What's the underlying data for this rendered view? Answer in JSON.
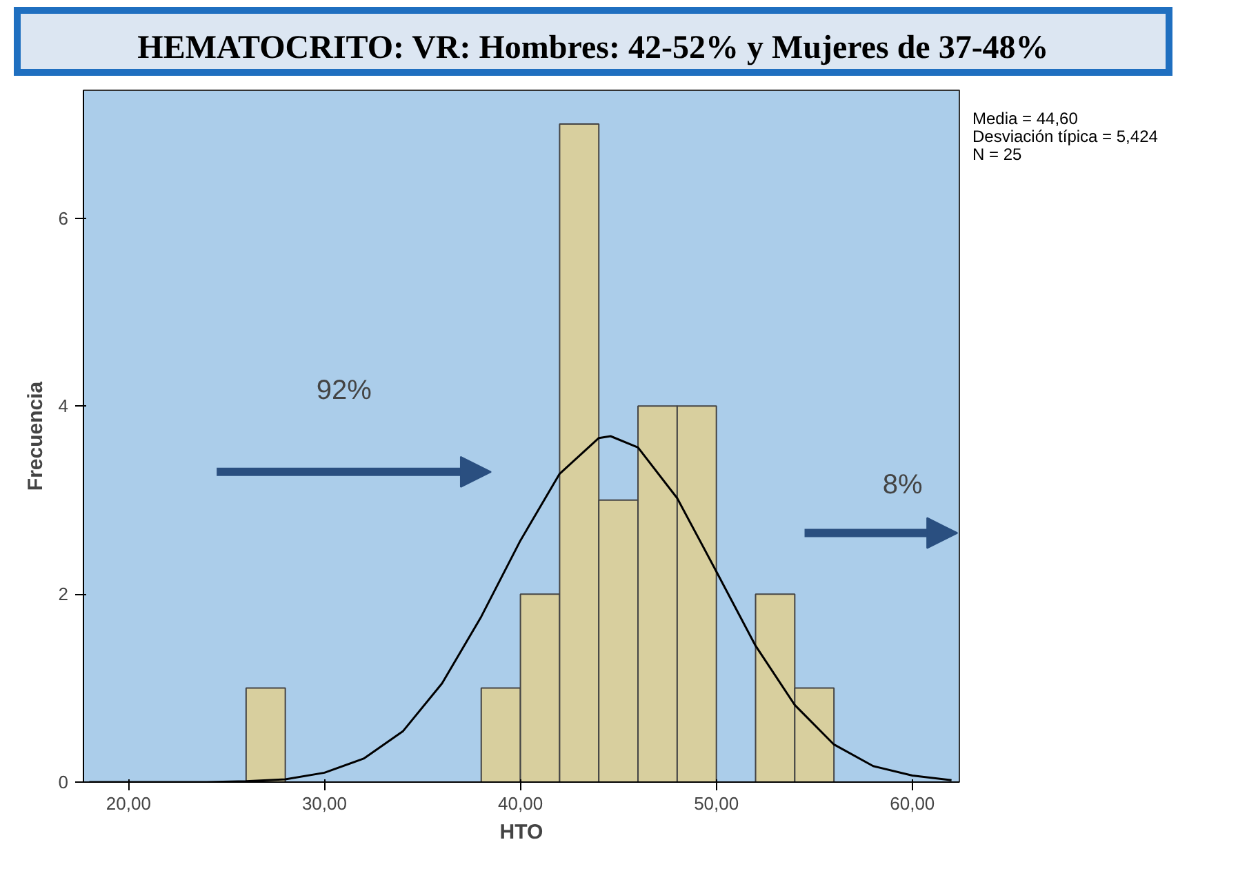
{
  "chart_data": {
    "type": "histogram",
    "title": "HEMATOCRITO: VR:   Hombres: 42-52% y Mujeres de 37-48%",
    "xlabel": "HTO",
    "ylabel": "Frecuencia",
    "bins": [
      26,
      28,
      30,
      32,
      34,
      36,
      38,
      40,
      42,
      44,
      46,
      48,
      50,
      52,
      54,
      56
    ],
    "values": [
      1,
      0,
      0,
      0,
      0,
      0,
      1,
      2,
      7,
      3,
      4,
      4,
      0,
      2,
      1
    ],
    "color": "#d8cf9e",
    "series": [
      {
        "type": "line",
        "color": "#000000",
        "x": [
          18,
          20,
          22,
          24,
          26,
          28,
          30,
          32,
          34,
          36,
          38,
          40,
          42,
          44,
          44.6,
          46,
          48,
          50,
          52,
          54,
          56,
          58,
          60,
          62
        ],
        "values": [
          0,
          0,
          0,
          0,
          0.01,
          0.03,
          0.1,
          0.25,
          0.54,
          1.05,
          1.76,
          2.57,
          3.28,
          3.66,
          3.68,
          3.56,
          3.02,
          2.24,
          1.45,
          0.82,
          0.4,
          0.17,
          0.07,
          0.02
        ]
      }
    ],
    "xlim": [
      17.7,
      62.4
    ],
    "ylim": [
      0,
      7.36
    ],
    "xticks": [
      {
        "value": 20,
        "label": "20,00"
      },
      {
        "value": 30,
        "label": "30,00"
      },
      {
        "value": 40,
        "label": "40,00"
      },
      {
        "value": 50,
        "label": "50,00"
      },
      {
        "value": 60,
        "label": "60,00"
      }
    ],
    "yticks": [
      0,
      2,
      4,
      6
    ],
    "grid": false,
    "annotations": [
      "Media = 44,60",
      "Desviación típica = 5,424",
      "N = 25",
      "92%",
      "8%"
    ]
  }
}
